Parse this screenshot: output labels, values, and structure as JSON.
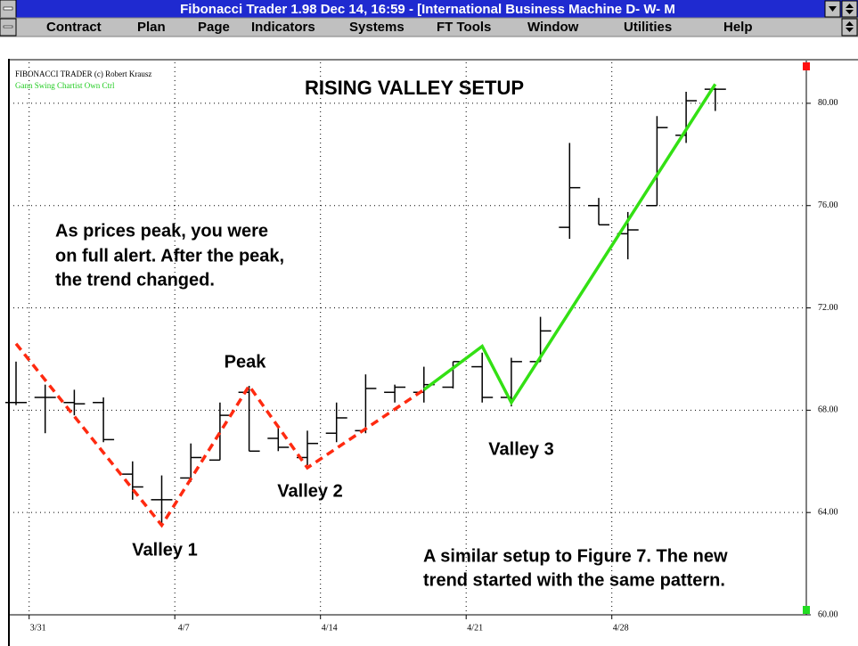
{
  "window": {
    "title": "Fibonacci Trader 1.98 Dec 14,  16:59 - [International Business Machine D- W- M",
    "menu": [
      "Contract",
      "Plan",
      "Page",
      "Indicators",
      "Systems",
      "FT Tools",
      "Window",
      "Utilities",
      "Help"
    ]
  },
  "chart_data": {
    "type": "ohlc",
    "title": "RISING VALLEY SETUP",
    "header_lines": [
      "FIBONACCI TRADER (c) Robert Krausz",
      "Gann Swing Chartist Own Ctrl"
    ],
    "annotations": [
      "As prices peak, you were",
      "on full alert. After the peak,",
      "the trend changed.",
      "Peak",
      "Valley 1",
      "Valley 2",
      "Valley 3",
      "A similar setup to Figure 7. The new",
      "trend started with the same pattern."
    ],
    "categories": [
      null,
      "3/31",
      null,
      null,
      null,
      null,
      "4/7",
      null,
      null,
      null,
      null,
      "4/14",
      null,
      null,
      null,
      null,
      "4/21",
      null,
      null,
      null,
      null,
      "4/28",
      null,
      null,
      null
    ],
    "color": "#000000",
    "open": [
      68.3,
      68.5,
      68.3,
      68.3,
      65.5,
      64.5,
      65.35,
      66.05,
      68.7,
      66.9,
      66.15,
      67.1,
      67.2,
      68.7,
      68.7,
      68.9,
      69.7,
      68.5,
      69.9,
      75.15,
      76.0,
      74.9,
      76.0,
      78.75,
      80.55
    ],
    "high": [
      69.9,
      69.0,
      68.8,
      68.5,
      66.0,
      65.45,
      66.7,
      68.3,
      68.95,
      67.3,
      67.2,
      68.3,
      69.4,
      69.0,
      69.7,
      69.9,
      70.25,
      70.05,
      71.65,
      78.45,
      76.3,
      75.75,
      79.5,
      80.45,
      80.6
    ],
    "low": [
      68.2,
      67.1,
      67.8,
      66.75,
      64.5,
      63.5,
      65.2,
      66.05,
      66.4,
      66.4,
      65.85,
      66.75,
      67.1,
      68.3,
      68.3,
      68.85,
      68.3,
      68.15,
      69.9,
      74.7,
      75.25,
      73.9,
      76.0,
      78.45,
      79.7
    ],
    "close": [
      68.3,
      68.5,
      68.25,
      66.85,
      65.0,
      64.5,
      66.15,
      67.8,
      66.4,
      66.55,
      66.7,
      67.7,
      68.85,
      68.9,
      69.0,
      69.9,
      68.5,
      69.9,
      71.1,
      76.7,
      75.25,
      75.05,
      79.05,
      80.1,
      80.55
    ],
    "series": [
      {
        "color": "#ff2a10",
        "dashed": true,
        "x": [
          0,
          5,
          8,
          10,
          14
        ],
        "values": [
          70.6,
          63.5,
          68.95,
          65.75,
          68.8
        ]
      },
      {
        "color": "#33e014",
        "dashed": false,
        "x": [
          14,
          16,
          17,
          24
        ],
        "values": [
          68.8,
          70.5,
          68.3,
          80.75
        ]
      }
    ],
    "ylim": [
      60,
      81.6
    ],
    "yticks": [
      {
        "value": 60,
        "label": "60.00"
      },
      {
        "value": 64,
        "label": "64.00"
      },
      {
        "value": 68,
        "label": "68.00"
      },
      {
        "value": 72,
        "label": "72.00"
      },
      {
        "value": 76,
        "label": "76.00"
      },
      {
        "value": 80,
        "label": "80.00"
      }
    ],
    "grid": true
  }
}
